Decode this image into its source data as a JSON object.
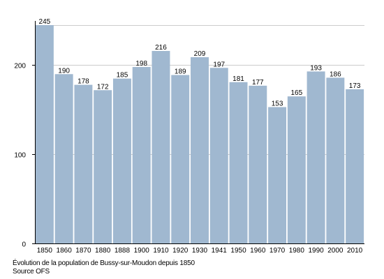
{
  "chart_data": {
    "type": "bar",
    "categories": [
      "1850",
      "1860",
      "1870",
      "1880",
      "1888",
      "1900",
      "1910",
      "1920",
      "1930",
      "1941",
      "1950",
      "1960",
      "1970",
      "1980",
      "1990",
      "2000",
      "2010"
    ],
    "series": [
      {
        "values": [
          245,
          190,
          178,
          172,
          185,
          198,
          216,
          189,
          209,
          197,
          181,
          177,
          153,
          165,
          193,
          186,
          173
        ]
      }
    ],
    "ylim": [
      0,
      245
    ],
    "yticks": [
      0,
      100,
      200
    ],
    "grid": true,
    "bar_color": "#a0b8d0",
    "grid_color": "#cccccc",
    "axis_color": "#000000",
    "caption": "Évolution de la population de Bussy-sur-Moudon depuis 1850",
    "source": "Source OFS"
  }
}
